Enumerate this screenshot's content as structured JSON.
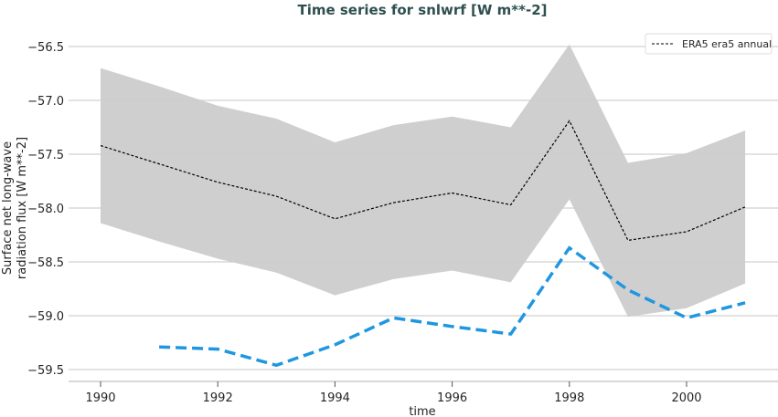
{
  "chart_data": {
    "type": "line",
    "title": "Time series for snlwrf [W m**-2]",
    "xlabel": "time",
    "ylabel": [
      "Surface net long-wave",
      "radiation flux [W m**-2]"
    ],
    "xlim": [
      1989.5,
      2001.6
    ],
    "ylim": [
      -59.6,
      -56.4
    ],
    "xticks": [
      1990,
      1992,
      1994,
      1996,
      1998,
      2000
    ],
    "xtick_labels": [
      "1990",
      "1992",
      "1994",
      "1996",
      "1998",
      "2000"
    ],
    "yticks": [
      -56.5,
      -57.0,
      -57.5,
      -58.0,
      -58.5,
      -59.0,
      -59.5
    ],
    "ytick_labels": [
      "−56.5",
      "−57.0",
      "−57.5",
      "−58.0",
      "−58.5",
      "−59.0",
      "−59.5"
    ],
    "grid": "horizontal",
    "legend_position": "top-right",
    "band": {
      "color": "#cccccc",
      "x": [
        1990,
        1991,
        1992,
        1993,
        1994,
        1995,
        1996,
        1997,
        1998,
        1999,
        2000,
        2001
      ],
      "upper": [
        -56.7,
        -56.87,
        -57.05,
        -57.17,
        -57.39,
        -57.23,
        -57.15,
        -57.25,
        -56.48,
        -57.58,
        -57.49,
        -57.28
      ],
      "lower": [
        -58.14,
        -58.31,
        -58.47,
        -58.6,
        -58.81,
        -58.66,
        -58.58,
        -58.69,
        -57.92,
        -59.01,
        -58.93,
        -58.7
      ]
    },
    "series": [
      {
        "name": "ERA5 era5 annual",
        "color": "#000000",
        "style": "dashed-thin",
        "x": [
          1990,
          1991,
          1992,
          1993,
          1994,
          1995,
          1996,
          1997,
          1998,
          1999,
          2000,
          2001
        ],
        "y": [
          -57.42,
          -57.59,
          -57.76,
          -57.89,
          -58.1,
          -57.95,
          -57.86,
          -57.97,
          -57.19,
          -58.3,
          -58.22,
          -57.99
        ]
      },
      {
        "color": "#1f97e0",
        "style": "dashed-thick",
        "x": [
          1991,
          1992,
          1993,
          1994,
          1995,
          1996,
          1997,
          1998,
          1999,
          2000,
          2001
        ],
        "y": [
          -59.29,
          -59.31,
          -59.46,
          -59.27,
          -59.02,
          -59.1,
          -59.17,
          -58.37,
          -58.76,
          -59.02,
          -58.88
        ]
      }
    ]
  }
}
